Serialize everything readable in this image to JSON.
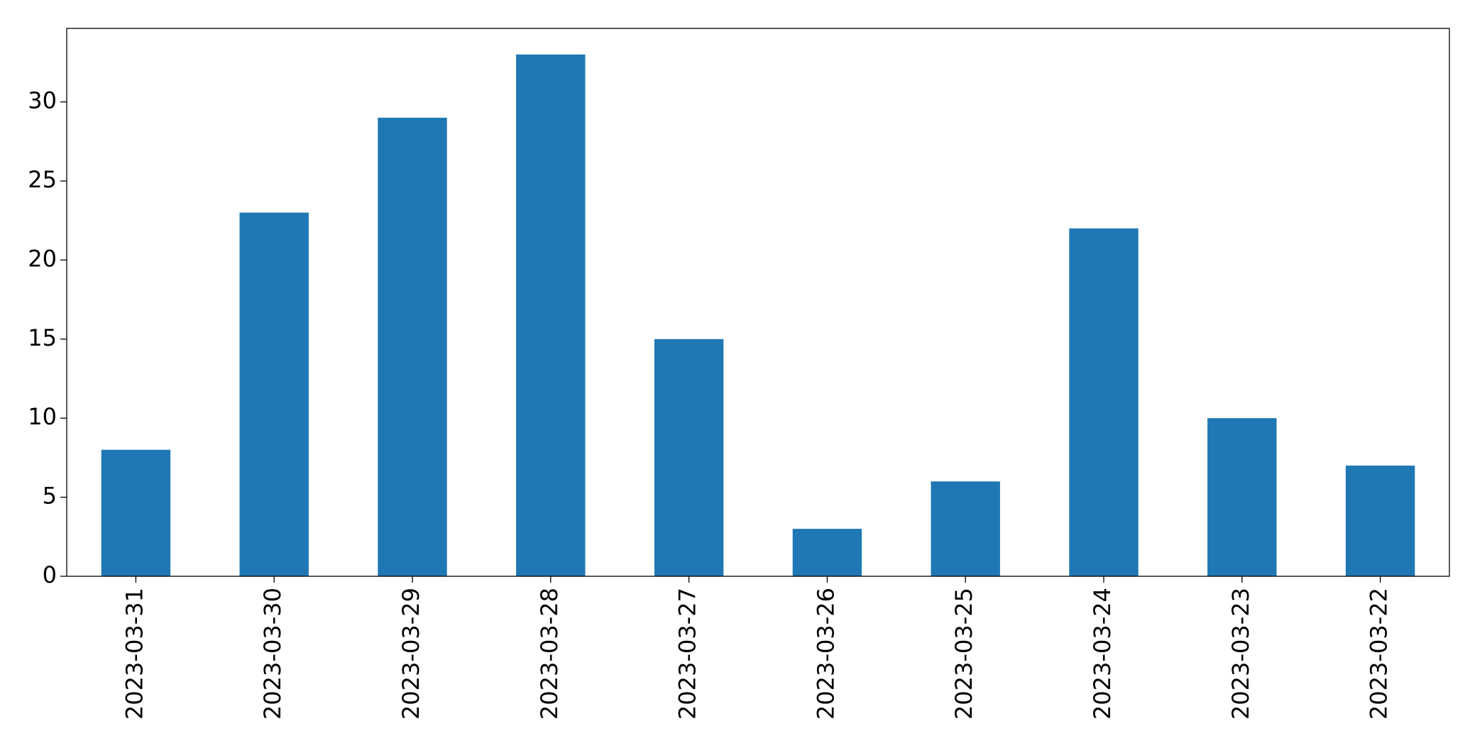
{
  "chart_data": {
    "type": "bar",
    "categories": [
      "2023-03-31",
      "2023-03-30",
      "2023-03-29",
      "2023-03-28",
      "2023-03-27",
      "2023-03-26",
      "2023-03-25",
      "2023-03-24",
      "2023-03-23",
      "2023-03-22"
    ],
    "values": [
      8,
      23,
      29,
      33,
      15,
      3,
      6,
      22,
      10,
      7
    ],
    "color": "#1f77b4",
    "ylim": [
      0,
      34.65
    ],
    "yticks": [
      0,
      5,
      10,
      15,
      20,
      25,
      30
    ],
    "grid": false
  }
}
